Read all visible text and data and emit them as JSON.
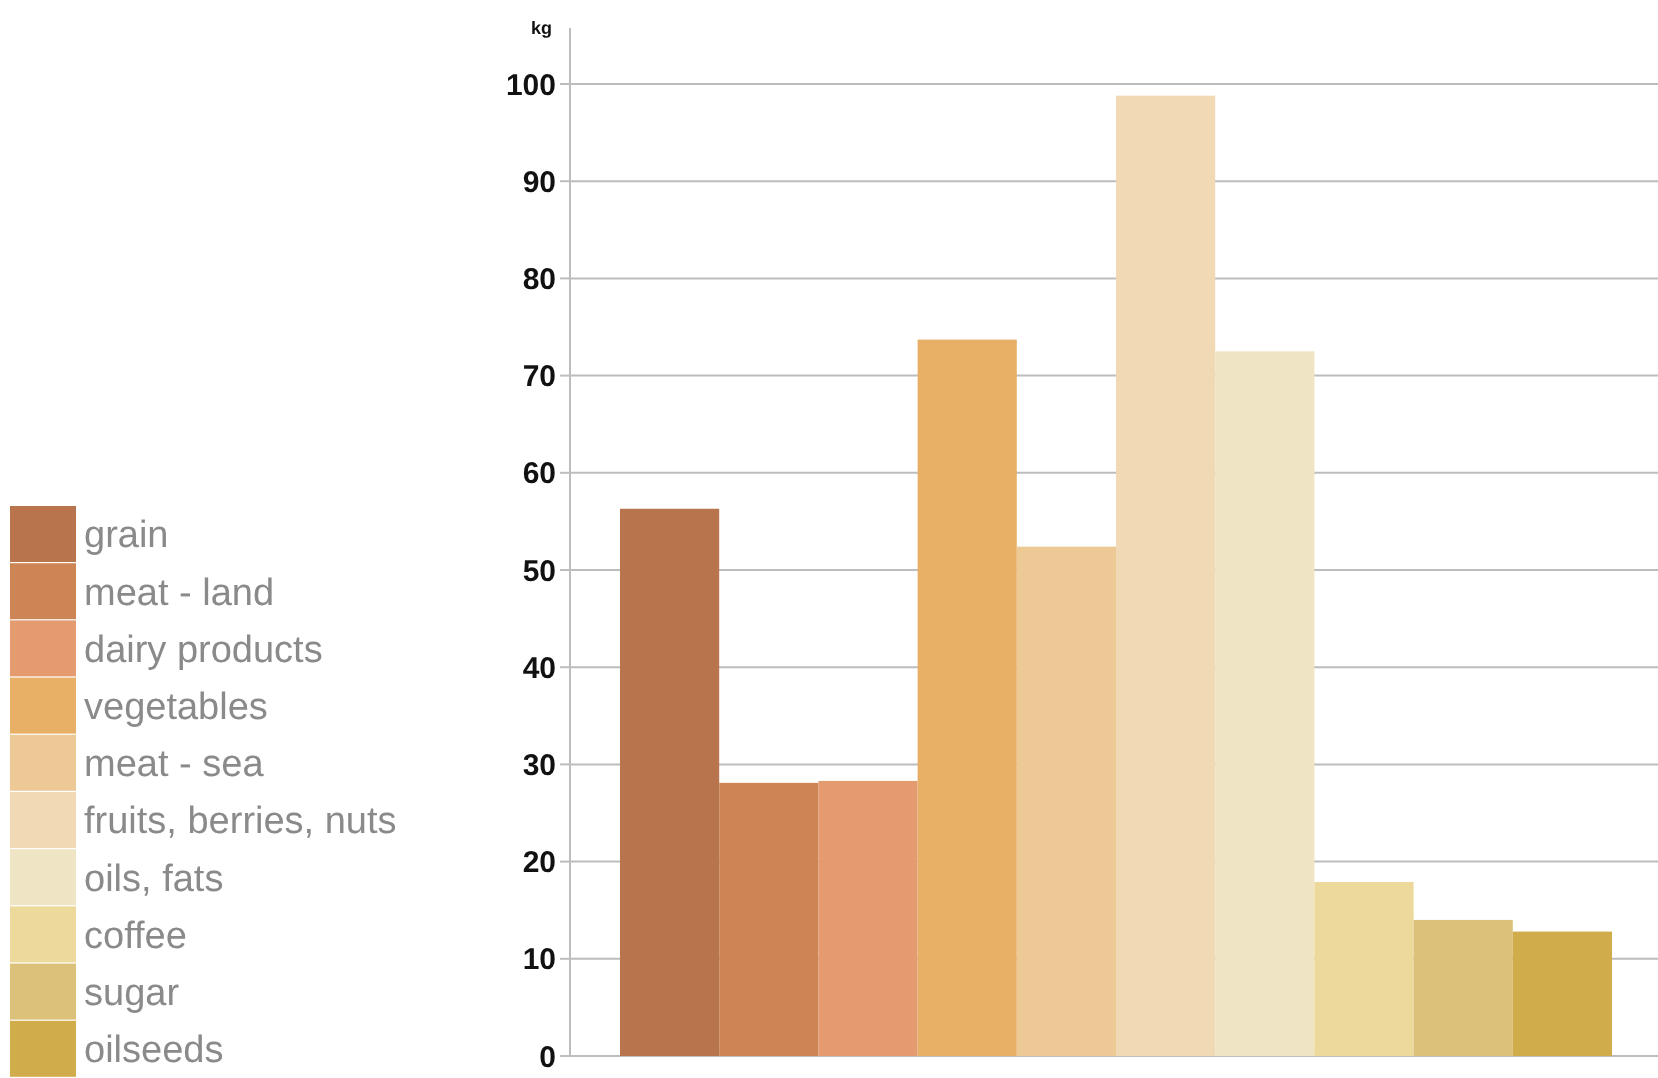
{
  "chart_data": {
    "type": "bar",
    "ylabel": "kg",
    "categories": [
      null
    ],
    "ylim": [
      0,
      100
    ],
    "yticks": [
      0,
      10,
      20,
      30,
      40,
      50,
      60,
      70,
      80,
      90,
      100
    ],
    "grid": "y",
    "legend": "left",
    "series": [
      {
        "name": "grain",
        "color": "#b8754d",
        "values": [
          56.3
        ]
      },
      {
        "name": "meat - land",
        "color": "#cd8555",
        "values": [
          28.1
        ]
      },
      {
        "name": "dairy products",
        "color": "#e59b70",
        "values": [
          28.3
        ]
      },
      {
        "name": "vegetables",
        "color": "#e8b066",
        "values": [
          73.7
        ]
      },
      {
        "name": "meat - sea",
        "color": "#edc996",
        "values": [
          52.4
        ]
      },
      {
        "name": "fruits, berries, nuts",
        "color": "#f1d9b5",
        "values": [
          98.8
        ]
      },
      {
        "name": "oils, fats",
        "color": "#efe4c4",
        "values": [
          72.5
        ]
      },
      {
        "name": "coffee",
        "color": "#ecd99b",
        "values": [
          17.9
        ]
      },
      {
        "name": "sugar",
        "color": "#dcc17a",
        "values": [
          14
        ]
      },
      {
        "name": "oilseeds",
        "color": "#d0ac4a",
        "values": [
          12.8
        ]
      }
    ]
  }
}
